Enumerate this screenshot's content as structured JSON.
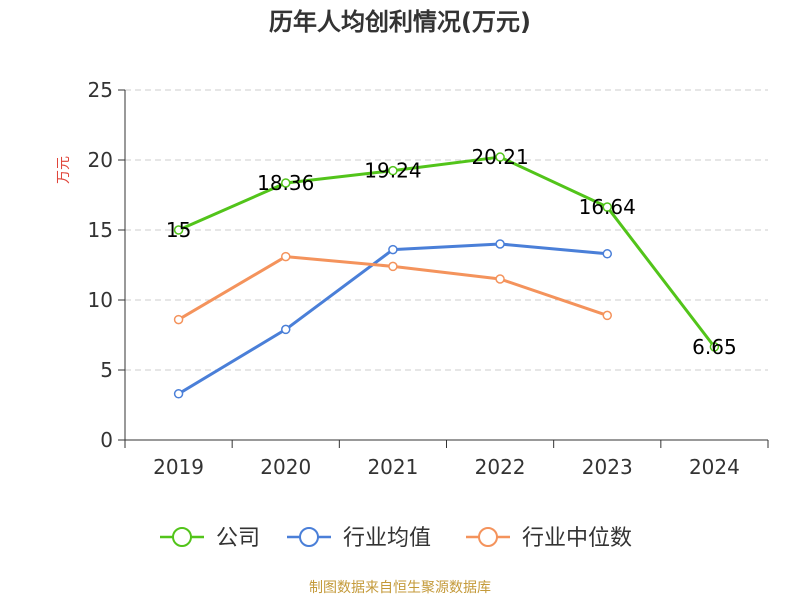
{
  "title": "历年人均创利情况(万元)",
  "footer": "制图数据来自恒生聚源数据库",
  "chart_data": {
    "type": "line",
    "ylabel": "万元",
    "xlabel": "",
    "categories": [
      "2019",
      "2020",
      "2021",
      "2022",
      "2023",
      "2024"
    ],
    "ylim": [
      0,
      25
    ],
    "yticks": [
      0,
      5,
      10,
      15,
      20,
      25
    ],
    "grid": true,
    "legend_position": "bottom",
    "series": [
      {
        "name": "公司",
        "color": "#52c41a",
        "values": [
          15,
          18.36,
          19.24,
          20.21,
          16.64,
          6.65
        ],
        "labels": [
          "15",
          "18.36",
          "19.24",
          "20.21",
          "16.64",
          "6.65"
        ]
      },
      {
        "name": "行业均值",
        "color": "#4a7fd8",
        "values": [
          3.3,
          7.9,
          13.6,
          14.0,
          13.3,
          null
        ]
      },
      {
        "name": "行业中位数",
        "color": "#f4935c",
        "values": [
          8.6,
          13.1,
          12.4,
          11.5,
          8.9,
          null
        ]
      }
    ]
  }
}
